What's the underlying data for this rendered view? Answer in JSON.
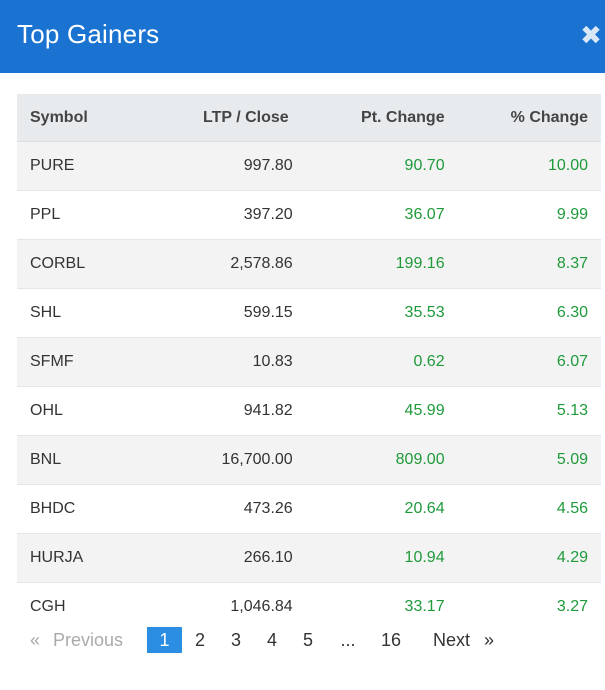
{
  "header": {
    "title": "Top Gainers",
    "close_glyph": "✖"
  },
  "table": {
    "columns": [
      "Symbol",
      "LTP / Close",
      "Pt. Change",
      "% Change"
    ],
    "rows": [
      [
        "PURE",
        "997.80",
        "90.70",
        "10.00"
      ],
      [
        "PPL",
        "397.20",
        "36.07",
        "9.99"
      ],
      [
        "CORBL",
        "2,578.86",
        "199.16",
        "8.37"
      ],
      [
        "SHL",
        "599.15",
        "35.53",
        "6.30"
      ],
      [
        "SFMF",
        "10.83",
        "0.62",
        "6.07"
      ],
      [
        "OHL",
        "941.82",
        "45.99",
        "5.13"
      ],
      [
        "BNL",
        "16,700.00",
        "809.00",
        "5.09"
      ],
      [
        "BHDC",
        "473.26",
        "20.64",
        "4.56"
      ],
      [
        "HURJA",
        "266.10",
        "10.94",
        "4.29"
      ],
      [
        "CGH",
        "1,046.84",
        "33.17",
        "3.27"
      ]
    ]
  },
  "pagination": {
    "first_arrow": "«",
    "previous_label": "Previous",
    "pages": [
      "1",
      "2",
      "3",
      "4",
      "5"
    ],
    "ellipsis": "...",
    "last_page": "16",
    "next_label": "Next",
    "next_arrow": "»",
    "active_page": "1"
  },
  "colors": {
    "header_bg": "#1a73d1",
    "positive": "#1e9a3a",
    "active_page_bg": "#2b8ee3"
  }
}
